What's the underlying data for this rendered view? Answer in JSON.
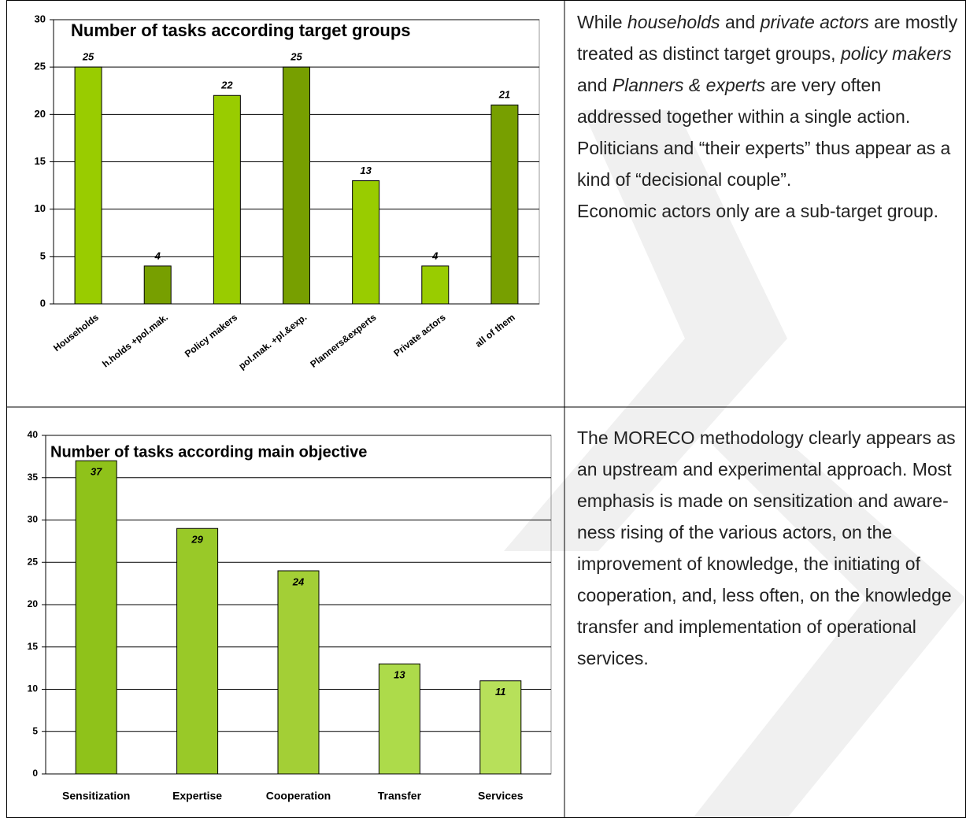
{
  "chart_data": [
    {
      "type": "bar",
      "title": "Number of tasks according target groups",
      "categories": [
        "Households",
        "h.holds +pol.mak.",
        "Policy makers",
        "pol.mak. +pl.&exp.",
        "Planners&experts",
        "Private actors",
        "all of them"
      ],
      "values": [
        25,
        4,
        22,
        25,
        13,
        4,
        21
      ],
      "colors": [
        "#99cc00",
        "#779f00",
        "#99cc00",
        "#779f00",
        "#99cc00",
        "#99cc00",
        "#779f00"
      ],
      "ylim": [
        0,
        30
      ],
      "yticks": [
        0,
        5,
        10,
        15,
        20,
        25,
        30
      ],
      "grid": true
    },
    {
      "type": "bar",
      "title": "Number of tasks according main objective",
      "categories": [
        "Sensitization",
        "Expertise",
        "Cooperation",
        "Transfer",
        "Services"
      ],
      "values": [
        37,
        29,
        24,
        13,
        11
      ],
      "colors": [
        "#8fc21a",
        "#99c928",
        "#a3cf36",
        "#addb4a",
        "#b7e05a"
      ],
      "ylim": [
        0,
        40
      ],
      "yticks": [
        0,
        5,
        10,
        15,
        20,
        25,
        30,
        35,
        40
      ],
      "grid": true
    }
  ],
  "paragraphs": [
    {
      "segments": [
        {
          "text": "While ",
          "italic": false
        },
        {
          "text": "households",
          "italic": true
        },
        {
          "text": " and ",
          "italic": false
        },
        {
          "text": "private actors",
          "italic": true
        },
        {
          "text": " are mostly treated as distinct target groups, ",
          "italic": false
        },
        {
          "text": "policy makers",
          "italic": true
        },
        {
          "text": " and ",
          "italic": false
        },
        {
          "text": "Planners & experts",
          "italic": true
        },
        {
          "text": " are very often addressed together within a single action. Politicians and “their experts” thus appear as a kind of “decisional couple”.",
          "italic": false
        }
      ]
    },
    {
      "segments": [
        {
          "text": "Economic actors only are a sub-target group.",
          "italic": false
        }
      ]
    },
    {
      "segments": [
        {
          "text": "The MORECO methodology clearly appears as an upstream and experimental approach. Most emphasis is made on sensitization and aware-ness rising of the various actors, on the improvement of knowledge, the initiating of cooperation, and, less often, on the knowledge transfer and implementation of operational services.",
          "italic": false
        }
      ]
    }
  ]
}
